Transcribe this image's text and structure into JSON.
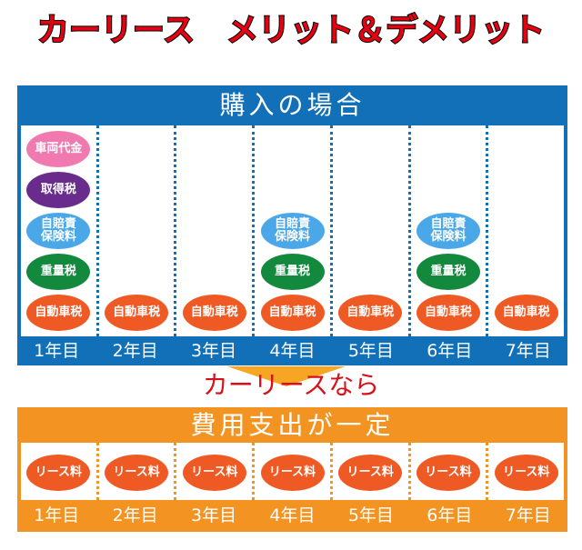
{
  "title": "カーリース　メリット＆デメリット",
  "purchase": {
    "header": "購入の場合",
    "years": [
      "1年目",
      "2年目",
      "3年目",
      "4年目",
      "5年目",
      "6年目",
      "7年目"
    ],
    "columns": [
      [
        {
          "label": "車両代金",
          "color": "#f07ab0"
        },
        {
          "label": "取得税",
          "color": "#6a2c8c"
        },
        {
          "label": "自賠責\n保険料",
          "color": "#4aa8e8"
        },
        {
          "label": "重量税",
          "color": "#12893c"
        },
        {
          "label": "自動車税",
          "color": "#ef5a24"
        }
      ],
      [
        {
          "label": "自動車税",
          "color": "#ef5a24"
        }
      ],
      [
        {
          "label": "自動車税",
          "color": "#ef5a24"
        }
      ],
      [
        {
          "label": "自賠責\n保険料",
          "color": "#4aa8e8"
        },
        {
          "label": "重量税",
          "color": "#12893c"
        },
        {
          "label": "自動車税",
          "color": "#ef5a24"
        }
      ],
      [
        {
          "label": "自動車税",
          "color": "#ef5a24"
        }
      ],
      [
        {
          "label": "自賠責\n保険料",
          "color": "#4aa8e8"
        },
        {
          "label": "重量税",
          "color": "#12893c"
        },
        {
          "label": "自動車税",
          "color": "#ef5a24"
        }
      ],
      [
        {
          "label": "自動車税",
          "color": "#ef5a24"
        }
      ]
    ]
  },
  "transition": "カーリースなら",
  "lease": {
    "header": "費用支出が一定",
    "item": {
      "label": "リース料",
      "color": "#ef5a24"
    },
    "years": [
      "1年目",
      "2年目",
      "3年目",
      "4年目",
      "5年目",
      "6年目",
      "7年目"
    ]
  }
}
